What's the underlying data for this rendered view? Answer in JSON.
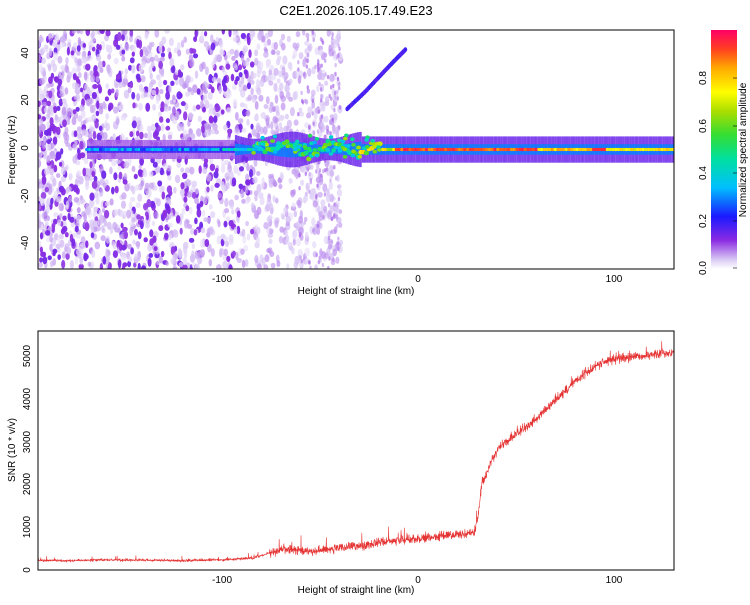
{
  "title": "C2E1.2026.105.17.49.E23",
  "spectrogram": {
    "xlabel": "Height of straight line (km)",
    "ylabel": "Frequency (Hz)",
    "xticks": [
      "-100",
      "0",
      "100"
    ],
    "yticks": [
      "40",
      "20",
      "0",
      "-20",
      "-40"
    ],
    "colorbar_label": "Normalized spectral amplitude",
    "colorbar_ticks": [
      "0.0",
      "0.2",
      "0.4",
      "0.6",
      "0.8"
    ]
  },
  "snr_plot": {
    "xlabel": "Height of straight line (km)",
    "ylabel": "SNR (10 * v/v)",
    "xticks": [
      "-100",
      "0",
      "100"
    ],
    "yticks": [
      "0",
      "1000",
      "2000",
      "3000",
      "4000",
      "5000"
    ]
  },
  "chart_data": [
    {
      "type": "heatmap",
      "title": "C2E1.2026.105.17.49.E23",
      "xlabel": "Height of straight line (km)",
      "ylabel": "Frequency (Hz)",
      "xlim": [
        -195,
        130
      ],
      "ylim": [
        -50,
        50
      ],
      "colorbar": {
        "label": "Normalized spectral amplitude",
        "range": [
          0.0,
          0.95
        ],
        "colormap": "rainbow"
      },
      "features": [
        {
          "name": "noise-speckle",
          "x_range": [
            -195,
            -40
          ],
          "freq_range": [
            -50,
            50
          ],
          "amplitude": 0.1
        },
        {
          "name": "main-band",
          "x_range": [
            -170,
            130
          ],
          "center_freq": 0,
          "amplitude_range": [
            0.2,
            0.95
          ]
        },
        {
          "name": "rising-branch",
          "x": [
            -37,
            -28,
            -20,
            -13,
            -7
          ],
          "freq": [
            17,
            24,
            31,
            37,
            42
          ],
          "amplitude": 0.15
        }
      ]
    },
    {
      "type": "line",
      "color": "#e53232",
      "xlabel": "Height of straight line (km)",
      "ylabel": "SNR (10 * v/v)",
      "xlim": [
        -195,
        130
      ],
      "ylim": [
        0,
        5600
      ],
      "series": [
        {
          "name": "SNR",
          "x": [
            -195,
            -180,
            -160,
            -140,
            -120,
            -100,
            -85,
            -78,
            -70,
            -60,
            -50,
            -40,
            -30,
            -20,
            -10,
            0,
            10,
            20,
            28,
            30,
            32,
            34,
            36,
            40,
            50,
            60,
            70,
            80,
            90,
            100,
            110,
            120,
            130
          ],
          "y": [
            230,
            220,
            240,
            230,
            220,
            240,
            280,
            380,
            500,
            440,
            460,
            520,
            560,
            660,
            700,
            740,
            790,
            840,
            860,
            1300,
            2100,
            2200,
            2500,
            2850,
            3200,
            3550,
            4000,
            4450,
            4800,
            4950,
            5000,
            5050,
            5100
          ]
        }
      ]
    }
  ]
}
